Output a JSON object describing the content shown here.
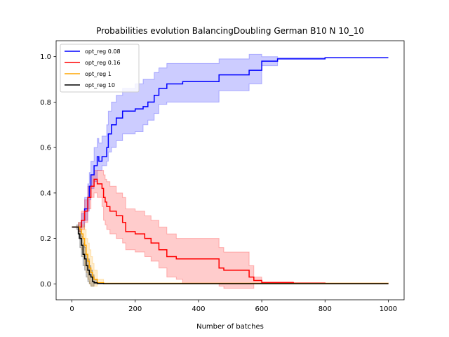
{
  "chart_data": {
    "type": "line",
    "title": "Probabilities evolution BalancingDoubling German B10 N 10_10",
    "xlabel": "Number of batches",
    "ylabel": "",
    "xlim": [
      -50,
      1050
    ],
    "ylim": [
      -0.07,
      1.07
    ],
    "xticks": [
      0,
      200,
      400,
      600,
      800,
      1000
    ],
    "yticks": [
      0.0,
      0.2,
      0.4,
      0.6,
      0.8,
      1.0
    ],
    "xtick_labels": [
      "0",
      "200",
      "400",
      "600",
      "800",
      "1000"
    ],
    "ytick_labels": [
      "0.0",
      "0.2",
      "0.4",
      "0.6",
      "0.8",
      "1.0"
    ],
    "legend_position": "top-left",
    "series": [
      {
        "name": "opt_reg 0.08",
        "color": "#0000ff",
        "x": [
          0,
          20,
          30,
          40,
          50,
          55,
          60,
          70,
          80,
          85,
          95,
          110,
          115,
          125,
          140,
          160,
          200,
          225,
          240,
          260,
          275,
          300,
          350,
          440,
          465,
          560,
          600,
          650,
          700,
          800,
          1000
        ],
        "y": [
          0.25,
          0.25,
          0.28,
          0.33,
          0.38,
          0.43,
          0.48,
          0.52,
          0.56,
          0.54,
          0.56,
          0.6,
          0.66,
          0.7,
          0.73,
          0.76,
          0.77,
          0.78,
          0.8,
          0.83,
          0.86,
          0.88,
          0.89,
          0.89,
          0.92,
          0.94,
          0.98,
          0.99,
          0.99,
          0.995,
          0.995
        ],
        "band_lower": [
          0.25,
          0.23,
          0.25,
          0.28,
          0.32,
          0.37,
          0.42,
          0.45,
          0.5,
          0.5,
          0.52,
          0.54,
          0.58,
          0.6,
          0.63,
          0.66,
          0.67,
          0.7,
          0.72,
          0.75,
          0.79,
          0.8,
          0.8,
          0.8,
          0.85,
          0.88,
          0.96,
          0.99,
          0.99,
          0.995,
          0.995
        ],
        "band_upper": [
          0.25,
          0.27,
          0.31,
          0.38,
          0.44,
          0.49,
          0.54,
          0.6,
          0.64,
          0.62,
          0.65,
          0.7,
          0.76,
          0.8,
          0.83,
          0.86,
          0.88,
          0.9,
          0.9,
          0.93,
          0.95,
          0.97,
          0.97,
          0.97,
          0.99,
          1.01,
          1.0,
          0.995,
          0.995,
          0.995,
          0.995
        ]
      },
      {
        "name": "opt_reg 0.16",
        "color": "#ff0000",
        "x": [
          0,
          20,
          30,
          40,
          50,
          60,
          70,
          80,
          95,
          100,
          105,
          110,
          120,
          140,
          160,
          170,
          200,
          230,
          250,
          275,
          300,
          330,
          350,
          465,
          480,
          560,
          575,
          600,
          700,
          800,
          1000
        ],
        "y": [
          0.25,
          0.25,
          0.28,
          0.32,
          0.38,
          0.43,
          0.46,
          0.44,
          0.42,
          0.38,
          0.36,
          0.34,
          0.32,
          0.3,
          0.27,
          0.23,
          0.22,
          0.2,
          0.18,
          0.15,
          0.12,
          0.11,
          0.11,
          0.07,
          0.06,
          0.03,
          0.015,
          0.005,
          0.003,
          0.002,
          0.002
        ],
        "band_lower": [
          0.25,
          0.23,
          0.24,
          0.27,
          0.33,
          0.38,
          0.4,
          0.38,
          0.34,
          0.28,
          0.26,
          0.24,
          0.22,
          0.2,
          0.18,
          0.15,
          0.14,
          0.12,
          0.1,
          0.07,
          0.03,
          0.02,
          0.0,
          -0.01,
          -0.02,
          -0.02,
          0.0,
          0.0,
          0.0,
          0.0,
          0.0
        ],
        "band_upper": [
          0.25,
          0.27,
          0.32,
          0.37,
          0.43,
          0.48,
          0.5,
          0.5,
          0.5,
          0.48,
          0.46,
          0.45,
          0.43,
          0.4,
          0.38,
          0.33,
          0.32,
          0.3,
          0.28,
          0.25,
          0.22,
          0.2,
          0.2,
          0.16,
          0.14,
          0.08,
          0.03,
          0.01,
          0.005,
          0.003,
          0.003
        ]
      },
      {
        "name": "opt_reg 1",
        "color": "#ffa500",
        "x": [
          0,
          20,
          25,
          30,
          35,
          40,
          45,
          50,
          55,
          60,
          65,
          70,
          80,
          100,
          1000
        ],
        "y": [
          0.25,
          0.25,
          0.24,
          0.22,
          0.2,
          0.17,
          0.13,
          0.1,
          0.07,
          0.05,
          0.03,
          0.02,
          0.005,
          0.002,
          0.002
        ],
        "band_lower": [
          0.25,
          0.23,
          0.2,
          0.15,
          0.12,
          0.08,
          0.05,
          0.02,
          0.0,
          -0.01,
          -0.01,
          -0.01,
          0.0,
          0.0,
          0.0
        ],
        "band_upper": [
          0.25,
          0.27,
          0.27,
          0.26,
          0.26,
          0.24,
          0.2,
          0.18,
          0.15,
          0.12,
          0.09,
          0.06,
          0.02,
          0.005,
          0.004
        ]
      },
      {
        "name": "opt_reg 10",
        "color": "#000000",
        "x": [
          0,
          15,
          20,
          25,
          30,
          35,
          40,
          45,
          50,
          55,
          60,
          65,
          70,
          80,
          100,
          1000
        ],
        "y": [
          0.25,
          0.25,
          0.22,
          0.2,
          0.17,
          0.13,
          0.11,
          0.08,
          0.06,
          0.04,
          0.03,
          0.01,
          0.005,
          0.002,
          0.001,
          0.001
        ],
        "band_lower": [
          0.25,
          0.24,
          0.2,
          0.16,
          0.12,
          0.08,
          0.06,
          0.03,
          0.01,
          0.0,
          -0.01,
          -0.01,
          0.0,
          0.0,
          0.0,
          0.0
        ],
        "band_upper": [
          0.25,
          0.26,
          0.24,
          0.23,
          0.21,
          0.18,
          0.16,
          0.13,
          0.11,
          0.08,
          0.06,
          0.04,
          0.02,
          0.005,
          0.002,
          0.002
        ]
      }
    ]
  }
}
